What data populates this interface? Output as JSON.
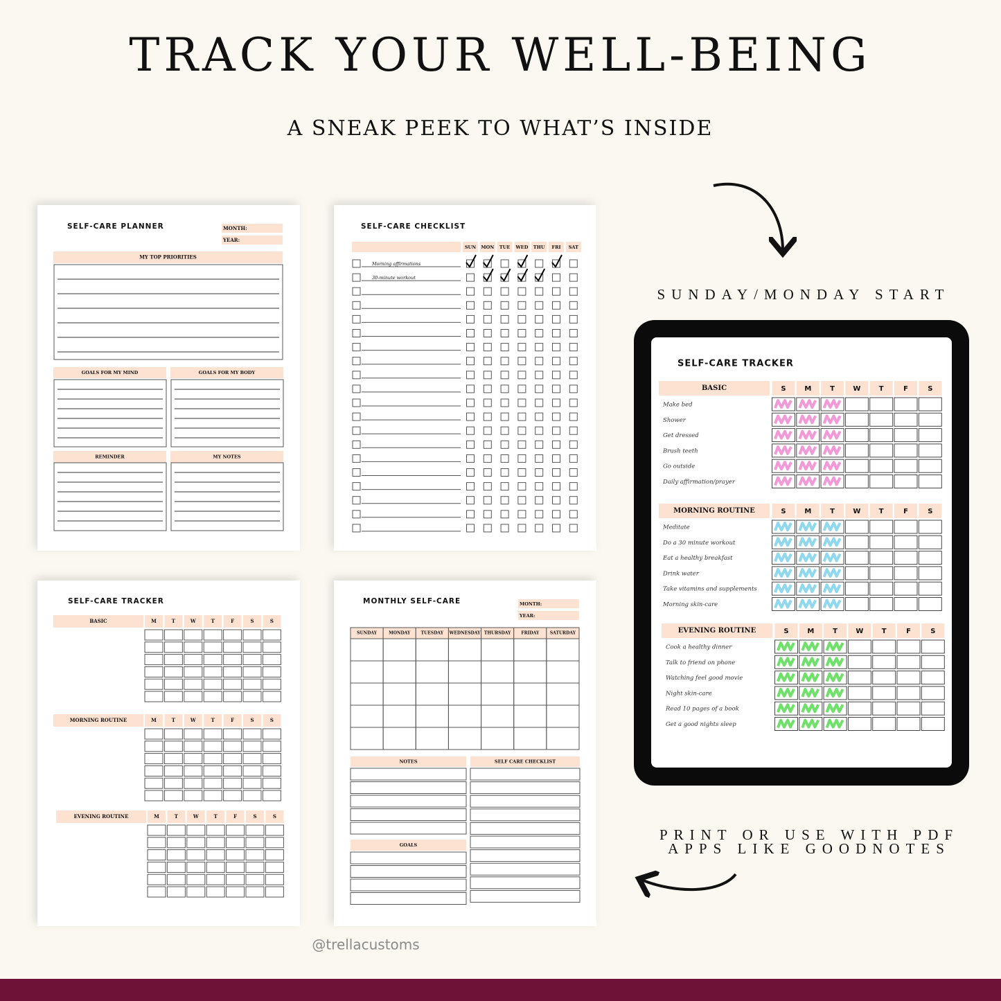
{
  "header": {
    "title": "TRACK YOUR WELL-BEING",
    "subtitle": "A SNEAK PEEK TO WHAT’S INSIDE"
  },
  "planner": {
    "title": "SELF-CARE PLANNER",
    "month": "MONTH:",
    "year": "YEAR:",
    "priorities": "MY TOP PRIORITIES",
    "mind": "GOALS FOR MY MIND",
    "body": "GOALS FOR MY BODY",
    "reminder": "REMINDER",
    "notes": "MY NOTES"
  },
  "checklist": {
    "title": "SELF-CARE CHECKLIST",
    "days": [
      "SUN",
      "MON",
      "TUE",
      "WED",
      "THU",
      "FRI",
      "SAT"
    ],
    "items": [
      "Morning affirmations",
      "30-minute workout"
    ]
  },
  "tracker": {
    "title": "SELF-CARE TRACKER",
    "days": [
      "M",
      "T",
      "W",
      "T",
      "F",
      "S",
      "S"
    ],
    "sections": [
      "BASIC",
      "MORNING ROUTINE",
      "EVENING ROUTINE"
    ]
  },
  "monthly": {
    "title": "MONTHLY SELF-CARE",
    "month": "MONTH:",
    "year": "YEAR:",
    "days": [
      "SUNDAY",
      "MONDAY",
      "TUESDAY",
      "WEDNESDAY",
      "THURSDAY",
      "FRIDAY",
      "SATURDAY"
    ],
    "notes": "NOTES",
    "checklist": "SELF CARE CHECKLIST",
    "goals": "GOALS"
  },
  "tablet": {
    "caption": "SUNDAY/MONDAY START",
    "title": "SELF-CARE TRACKER",
    "days": [
      "S",
      "M",
      "T",
      "W",
      "T",
      "F",
      "S"
    ],
    "sections": [
      {
        "name": "BASIC",
        "color": "#f29ad8",
        "items": [
          "Make bed",
          "Shower",
          "Get dressed",
          "Brush teeth",
          "Go outside",
          "Daily affirmation/prayer"
        ]
      },
      {
        "name": "MORNING ROUTINE",
        "color": "#8fd8ee",
        "items": [
          "Meditate",
          "Do a 30 minute workout",
          "Eat a healthy breakfast",
          "Drink water",
          "Take vitamins and supplements",
          "Morning skin-care"
        ]
      },
      {
        "name": "EVENING ROUTINE",
        "color": "#6fe06a",
        "items": [
          "Cook a healthy dinner",
          "Talk to friend on phone",
          "Watching feel good movie",
          "Night skin-care",
          "Read 10 pages of a book",
          "Get a good nights sleep"
        ]
      }
    ]
  },
  "footer": {
    "caption": [
      "PRINT OR USE WITH PDF",
      "APPS LIKE GOODNOTES"
    ],
    "handle": "@trellacustoms"
  }
}
